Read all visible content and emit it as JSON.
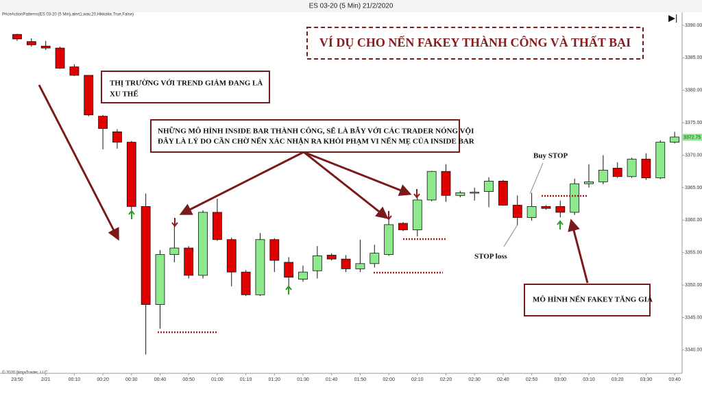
{
  "chart_data": {
    "type": "candlestick",
    "title": "ES 03-20 (5 Min)  21/2/2020",
    "indicator_label": "PriceActionPatterns(ES 03-20 (5 Min),alert1,wav,20,Hikkake,True,False)",
    "copyright": "© 2020 NinjaTrader, LLC",
    "categories": [
      "23:50",
      null,
      "2/21",
      null,
      "00:10",
      null,
      "00:20",
      null,
      "00:30",
      null,
      "00:40",
      null,
      "00:50",
      null,
      "01:00",
      null,
      "01:10",
      null,
      "01:20",
      null,
      "01:30",
      null,
      "01:40",
      null,
      "01:50",
      null,
      "02:00",
      null,
      "02:10",
      null,
      "02:20",
      null,
      "02:30",
      null,
      "02:40",
      null,
      "02:50",
      null,
      "03:00",
      null,
      "03:10",
      null,
      "03:20",
      null,
      "03:30",
      null,
      "03:40"
    ],
    "open": [
      3388.6,
      3387.5,
      3386.8,
      3386.5,
      3383.6,
      3382.3,
      3376,
      3373.6,
      3372,
      3362.1,
      3347,
      3354.7,
      3355.7,
      3351.5,
      3361.2,
      3357,
      3352,
      3348.5,
      3357,
      3353.5,
      3350.9,
      3352.2,
      3354.6,
      3354,
      3352.5,
      3353.3,
      3354.7,
      3359.5,
      3358.5,
      3363.1,
      3367.5,
      3363.8,
      3364.2,
      3364.4,
      3366,
      3362.3,
      3360.4,
      3362.1,
      3362.1,
      3361.2,
      3365.6,
      3365.9,
      3368,
      3366.7,
      3369.4,
      3366.5,
      3372
    ],
    "high": [
      3388.7,
      3388,
      3387.6,
      3386.7,
      3384,
      3382.3,
      3376.2,
      3374,
      3372.2,
      3364.1,
      3355.4,
      3359.1,
      3356,
      3361.5,
      3363.3,
      3357.3,
      3352.3,
      3358,
      3357.2,
      3354.3,
      3353,
      3356,
      3354.9,
      3354.6,
      3357,
      3356.2,
      3360.7,
      3359.7,
      3363.5,
      3367.6,
      3368.6,
      3364.5,
      3365,
      3366.6,
      3366.2,
      3363.8,
      3364.2,
      3362.3,
      3363,
      3366.4,
      3368.6,
      3370,
      3368.9,
      3369.6,
      3370.3,
      3372.3,
      3373.6
    ],
    "low": [
      3387.6,
      3386.7,
      3386.2,
      3383.3,
      3382.2,
      3376,
      3370.9,
      3371,
      3361.2,
      3339.3,
      3343.3,
      3353.5,
      3351,
      3351,
      3356.8,
      3349.8,
      3348.3,
      3348.3,
      3352,
      3349.9,
      3350.5,
      3351,
      3353.8,
      3352,
      3352,
      3352.7,
      3354.5,
      3358.3,
      3357.5,
      3362.9,
      3362.8,
      3363.5,
      3363,
      3362,
      3362.2,
      3359.2,
      3359.9,
      3361.6,
      3360.4,
      3360.8,
      3365,
      3365.5,
      3366.5,
      3366.5,
      3366.2,
      3366.3,
      3371.8
    ],
    "close": [
      3387.9,
      3387,
      3386.5,
      3383.4,
      3382.3,
      3376.2,
      3374.1,
      3372,
      3362.1,
      3347,
      3354.7,
      3355.7,
      3351.5,
      3361.2,
      3357,
      3352,
      3348.5,
      3357,
      3353.8,
      3351.2,
      3352,
      3354.5,
      3354,
      3352.5,
      3353.3,
      3354.9,
      3359.3,
      3358.5,
      3363.1,
      3367.5,
      3363.8,
      3364.2,
      3364.3,
      3366,
      3362.3,
      3360.4,
      3362.1,
      3361.8,
      3361.2,
      3365.6,
      3365.9,
      3367.7,
      3366.7,
      3369.4,
      3366.5,
      3372,
      3372.8
    ],
    "up_color": "#8ee88e",
    "down_color": "#e00000",
    "last_price": 3372.75,
    "ylim": [
      3336.4,
      3392
    ],
    "yticks": [
      {
        "value": 3340,
        "label": "3340.00"
      },
      {
        "value": 3345,
        "label": "3345.00"
      },
      {
        "value": 3350,
        "label": "3350.00"
      },
      {
        "value": 3355,
        "label": "3355.00"
      },
      {
        "value": 3360,
        "label": "3360.00"
      },
      {
        "value": 3365,
        "label": "3365.00"
      },
      {
        "value": 3370,
        "label": "3370.00"
      },
      {
        "value": 3375,
        "label": "3375.00"
      },
      {
        "value": 3380,
        "label": "3380.00"
      },
      {
        "value": 3385,
        "label": "3385.00"
      },
      {
        "value": 3390,
        "label": "3390.00"
      }
    ],
    "annotations": [
      {
        "lines": [
          "VÍ DỤ CHO NẾN FAKEY THÀNH CÔNG VÀ THẤT BẠI"
        ]
      },
      {
        "lines": [
          "THỊ TRƯỜNG VỚI TREND GIẢM ĐANG LÀ",
          "XU THẾ"
        ]
      },
      {
        "lines": [
          "NHỮNG MÔ HÌNH INSIDE BAR THÀNH CÔNG, SẼ LÀ BẪY VỚI CÁC TRADER NÓNG VỘI",
          "ĐÂY LÀ LÝ DO CẦN CHỜ NẾN XÁC NHẬN RA KHỎI PHẠM VI NẾN MẸ CỦA INSIDE BAR"
        ]
      },
      {
        "lines": [
          "Buy STOP"
        ]
      },
      {
        "lines": [
          "STOP loss"
        ]
      },
      {
        "lines": [
          "MÔ HÌNH NẾN FAKEY TĂNG GIÁ"
        ]
      }
    ]
  }
}
